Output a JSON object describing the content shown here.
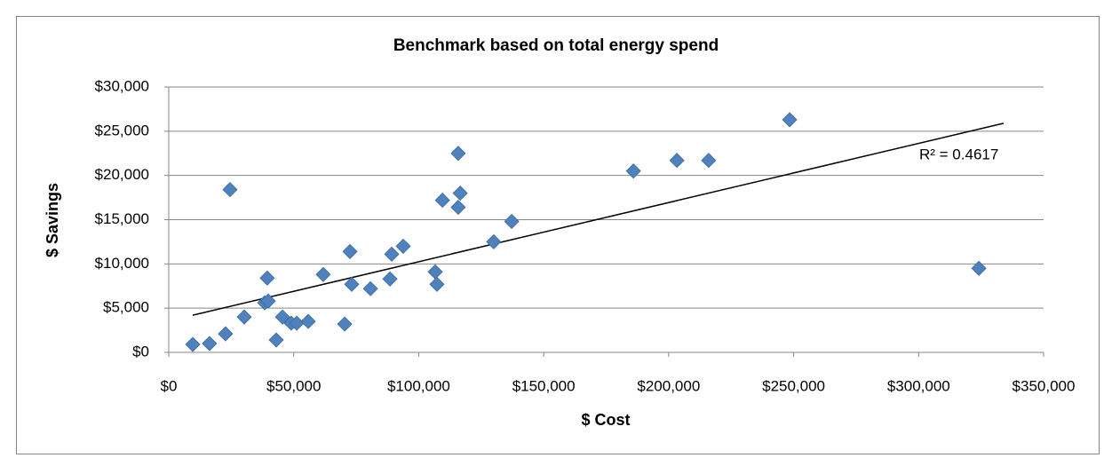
{
  "chart_data": {
    "type": "scatter",
    "title": "Benchmark based on total energy spend",
    "xlabel": "$ Cost",
    "ylabel": "$ Savings",
    "annotation": "R² = 0.4617",
    "color": "#4f81bd",
    "grid": true,
    "xlim": [
      0,
      350000
    ],
    "ylim": [
      0,
      30000
    ],
    "xticks": [
      {
        "value": 0,
        "label": "$0"
      },
      {
        "value": 50000,
        "label": "$50,000"
      },
      {
        "value": 100000,
        "label": "$100,000"
      },
      {
        "value": 150000,
        "label": "$150,000"
      },
      {
        "value": 200000,
        "label": "$200,000"
      },
      {
        "value": 250000,
        "label": "$250,000"
      },
      {
        "value": 300000,
        "label": "$300,000"
      },
      {
        "value": 350000,
        "label": "$350,000"
      }
    ],
    "yticks": [
      {
        "value": 0,
        "label": "$0"
      },
      {
        "value": 5000,
        "label": "$5,000"
      },
      {
        "value": 10000,
        "label": "$10,000"
      },
      {
        "value": 15000,
        "label": "$15,000"
      },
      {
        "value": 20000,
        "label": "$20,000"
      },
      {
        "value": 25000,
        "label": "$25,000"
      },
      {
        "value": 30000,
        "label": "$30,000"
      }
    ],
    "x": [
      9600,
      16300,
      22700,
      24500,
      30200,
      38400,
      39400,
      39800,
      43000,
      45500,
      49000,
      51200,
      55800,
      61800,
      70400,
      72500,
      73200,
      80700,
      88500,
      89200,
      93800,
      106600,
      107300,
      109500,
      115800,
      115800,
      116600,
      130000,
      137200,
      185900,
      203300,
      216000,
      248400,
      324100
    ],
    "y": [
      900,
      1000,
      2100,
      18400,
      4000,
      5600,
      8400,
      5800,
      1400,
      4000,
      3300,
      3300,
      3500,
      8800,
      3200,
      11400,
      7700,
      7200,
      8300,
      11100,
      12000,
      9100,
      7700,
      17200,
      22500,
      16400,
      18000,
      12500,
      14800,
      20500,
      21700,
      21700,
      26300,
      9500
    ],
    "trendline": {
      "x": [
        9600,
        334000
      ],
      "y": [
        4200,
        25900
      ]
    }
  }
}
